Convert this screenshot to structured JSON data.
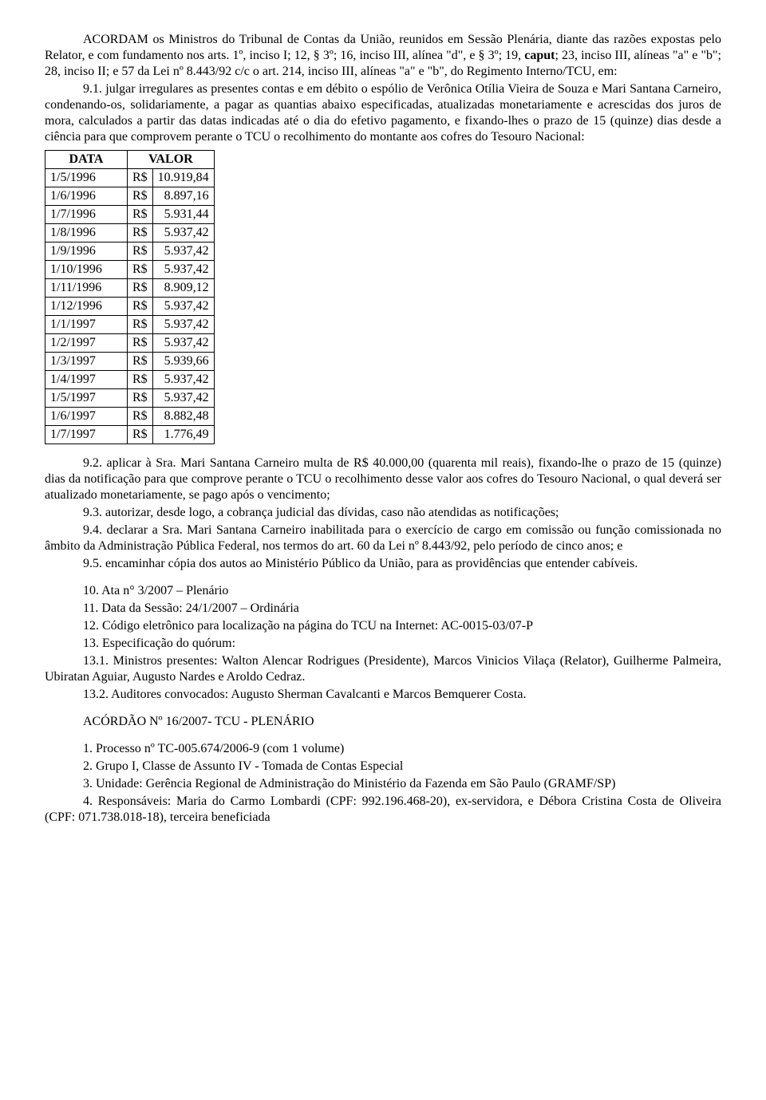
{
  "para1_prefix": "ACORDAM os Ministros do Tribunal de Contas da União, reunidos em Sessão Plenária, diante das razões expostas pelo Relator, e com fundamento nos arts. 1º, inciso I; 12, § 3º; 16, inciso III, alínea \"d\", e § 3º; 19, ",
  "para1_bold": "caput",
  "para1_suffix": "; 23, inciso III, alíneas \"a\" e \"b\"; 28, inciso II; e 57 da Lei nº 8.443/92 c/c o art. 214, inciso III, alíneas \"a\" e \"b\", do Regimento Interno/TCU, em:",
  "para2": "9.1. julgar irregulares as presentes contas e em débito o espólio de Verônica Otília Vieira de Souza e Mari Santana Carneiro, condenando-os, solidariamente, a pagar as quantias abaixo especificadas, atualizadas monetariamente e acrescidas dos juros de mora, calculados a partir das datas indicadas até o dia do efetivo pagamento, e fixando-lhes o prazo de 15 (quinze) dias desde a ciência para que comprovem perante o TCU o recolhimento do montante aos cofres do Tesouro Nacional:",
  "table": {
    "header_date": "DATA",
    "header_value": "VALOR",
    "currency": "R$",
    "rows": [
      {
        "date": "1/5/1996",
        "value": "10.919,84"
      },
      {
        "date": "1/6/1996",
        "value": "8.897,16"
      },
      {
        "date": "1/7/1996",
        "value": "5.931,44"
      },
      {
        "date": "1/8/1996",
        "value": "5.937,42"
      },
      {
        "date": "1/9/1996",
        "value": "5.937,42"
      },
      {
        "date": "1/10/1996",
        "value": "5.937,42"
      },
      {
        "date": "1/11/1996",
        "value": "8.909,12"
      },
      {
        "date": "1/12/1996",
        "value": "5.937,42"
      },
      {
        "date": "1/1/1997",
        "value": "5.937,42"
      },
      {
        "date": "1/2/1997",
        "value": "5.937,42"
      },
      {
        "date": "1/3/1997",
        "value": "5.939,66"
      },
      {
        "date": "1/4/1997",
        "value": "5.937,42"
      },
      {
        "date": "1/5/1997",
        "value": "5.937,42"
      },
      {
        "date": "1/6/1997",
        "value": "8.882,48"
      },
      {
        "date": "1/7/1997",
        "value": "1.776,49"
      }
    ]
  },
  "para9_2": "9.2. aplicar à Sra. Mari Santana Carneiro multa de R$ 40.000,00 (quarenta mil reais), fixando-lhe o prazo de 15 (quinze) dias da notificação para que comprove perante o TCU o recolhimento desse valor aos cofres do Tesouro Nacional, o qual deverá ser atualizado monetariamente, se pago após o vencimento;",
  "para9_3": "9.3. autorizar, desde logo, a cobrança judicial das dívidas, caso não atendidas as notificações;",
  "para9_4": "9.4. declarar a Sra. Mari Santana Carneiro inabilitada para o exercício de cargo em comissão ou função comissionada no âmbito da Administração Pública Federal, nos termos do art. 60 da Lei nº 8.443/92, pelo período de cinco anos; e",
  "para9_5": "9.5. encaminhar cópia dos autos ao Ministério Público da União, para as providências que entender cabíveis.",
  "p10": "10. Ata n° 3/2007 – Plenário",
  "p11": "11. Data da Sessão: 24/1/2007 – Ordinária",
  "p12": "12. Código eletrônico para localização na página do TCU na Internet: AC-0015-03/07-P",
  "p13": "13. Especificação do quórum:",
  "p13_1": "13.1. Ministros presentes: Walton Alencar Rodrigues (Presidente), Marcos Vinicios Vilaça (Relator), Guilherme Palmeira, Ubiratan Aguiar, Augusto Nardes e Aroldo Cedraz.",
  "p13_2": "13.2. Auditores convocados: Augusto Sherman Cavalcanti e Marcos Bemquerer Costa.",
  "acordao_title": "ACÓRDÃO Nº 16/2007- TCU - PLENÁRIO",
  "pA1": "1. Processo nº TC-005.674/2006-9 (com 1 volume)",
  "pA2": "2. Grupo I, Classe de Assunto IV - Tomada de Contas Especial",
  "pA3": "3. Unidade: Gerência Regional de Administração do Ministério da Fazenda em São Paulo (GRAMF/SP)",
  "pA4": "4. Responsáveis: Maria do Carmo Lombardi (CPF: 992.196.468-20), ex-servidora, e Débora Cristina Costa de Oliveira (CPF: 071.738.018-18), terceira beneficiada"
}
